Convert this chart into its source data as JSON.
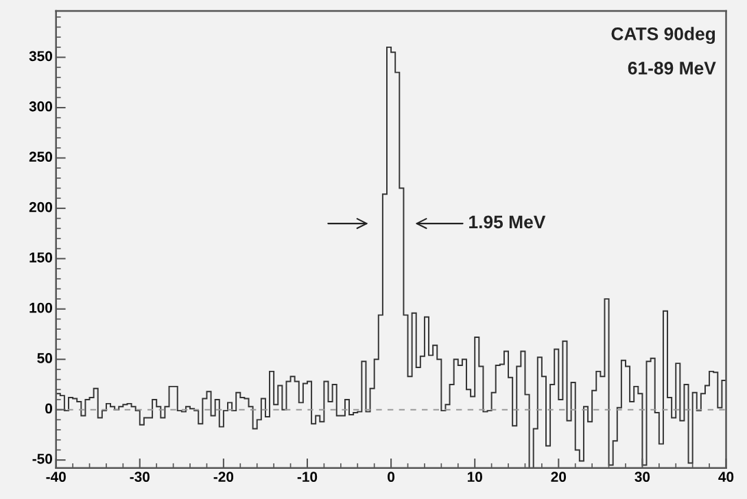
{
  "chart_data": {
    "type": "histogram",
    "bins": [
      -40,
      -39.5,
      -39,
      -38.5,
      -38,
      -37.5,
      -37,
      -36.5,
      -36,
      -35.5,
      -35,
      -34.5,
      -34,
      -33.5,
      -33,
      -32.5,
      -32,
      -31.5,
      -31,
      -30.5,
      -30,
      -29.5,
      -29,
      -28.5,
      -28,
      -27.5,
      -27,
      -26.5,
      -26,
      -25.5,
      -25,
      -24.5,
      -24,
      -23.5,
      -23,
      -22.5,
      -22,
      -21.5,
      -21,
      -20.5,
      -20,
      -19.5,
      -19,
      -18.5,
      -18,
      -17.5,
      -17,
      -16.5,
      -16,
      -15.5,
      -15,
      -14.5,
      -14,
      -13.5,
      -13,
      -12.5,
      -12,
      -11.5,
      -11,
      -10.5,
      -10,
      -9.5,
      -9,
      -8.5,
      -8,
      -7.5,
      -7,
      -6.5,
      -6,
      -5.5,
      -5,
      -4.5,
      -4,
      -3.5,
      -3,
      -2.5,
      -2,
      -1.5,
      -1,
      -0.5,
      0,
      0.5,
      1,
      1.5,
      2,
      2.5,
      3,
      3.5,
      4,
      4.5,
      5,
      5.5,
      6,
      6.5,
      7,
      7.5,
      8,
      8.5,
      9,
      9.5,
      10,
      10.5,
      11,
      11.5,
      12,
      12.5,
      13,
      13.5,
      14,
      14.5,
      15,
      15.5,
      16,
      16.5,
      17,
      17.5,
      18,
      18.5,
      19,
      19.5,
      20,
      20.5,
      21,
      21.5,
      22,
      22.5,
      23,
      23.5,
      24,
      24.5,
      25,
      25.5,
      26,
      26.5,
      27,
      27.5,
      28,
      28.5,
      29,
      29.5,
      30,
      30.5,
      31,
      31.5,
      32,
      32.5,
      33,
      33.5,
      34,
      34.5,
      35,
      35.5,
      36,
      36.5,
      37,
      37.5,
      38,
      38.5,
      39,
      39.5,
      40
    ],
    "values": [
      16,
      14,
      -1,
      12,
      11,
      8,
      -6,
      10,
      12,
      21,
      -8,
      -1,
      6,
      3,
      0,
      3,
      5,
      6,
      3,
      -1,
      -15,
      -8,
      -8,
      10,
      3,
      -8,
      3,
      23,
      23,
      -1,
      -2,
      3,
      1,
      -1,
      -14,
      11,
      18,
      -6,
      10,
      -17,
      -1,
      7,
      -1,
      17,
      12,
      11,
      3,
      -19,
      -10,
      11,
      -7,
      38,
      5,
      24,
      0,
      28,
      33,
      28,
      7,
      26,
      28,
      -14,
      -6,
      -12,
      28,
      8,
      25,
      -6,
      -6,
      10,
      -5,
      -3,
      -2,
      48,
      -2,
      21,
      50,
      94,
      214,
      360,
      355,
      335,
      220,
      94,
      33,
      96,
      42,
      53,
      92,
      54,
      64,
      50,
      -1,
      5,
      25,
      50,
      44,
      50,
      20,
      13,
      72,
      43,
      -2,
      -1,
      17,
      44,
      45,
      58,
      32,
      -16,
      43,
      58,
      15,
      -58,
      -19,
      52,
      33,
      -36,
      25,
      60,
      10,
      68,
      -11,
      27,
      -40,
      -51,
      3,
      -12,
      19,
      38,
      33,
      110,
      -55,
      -31,
      2,
      49,
      43,
      8,
      23,
      16,
      -55,
      48,
      51,
      -3,
      -34,
      98,
      12,
      -8,
      46,
      -11,
      25,
      -53,
      17,
      -1,
      16,
      24,
      38,
      37,
      2,
      29
    ],
    "color": "#333333",
    "xlim": [
      -40,
      40
    ],
    "ylim": [
      -58,
      396
    ],
    "xticks": [
      -40,
      -30,
      -20,
      -10,
      0,
      10,
      20,
      30,
      40,
      {
        "value": -38,
        "label": null
      },
      {
        "value": -36,
        "label": null
      },
      {
        "value": -34,
        "label": null
      },
      {
        "value": -32,
        "label": null
      },
      {
        "value": -28,
        "label": null
      },
      {
        "value": -26,
        "label": null
      },
      {
        "value": -24,
        "label": null
      },
      {
        "value": -22,
        "label": null
      },
      {
        "value": -18,
        "label": null
      },
      {
        "value": -16,
        "label": null
      },
      {
        "value": -14,
        "label": null
      },
      {
        "value": -12,
        "label": null
      },
      {
        "value": -8,
        "label": null
      },
      {
        "value": -6,
        "label": null
      },
      {
        "value": -4,
        "label": null
      },
      {
        "value": -2,
        "label": null
      },
      {
        "value": 2,
        "label": null
      },
      {
        "value": 4,
        "label": null
      },
      {
        "value": 6,
        "label": null
      },
      {
        "value": 8,
        "label": null
      },
      {
        "value": 12,
        "label": null
      },
      {
        "value": 14,
        "label": null
      },
      {
        "value": 16,
        "label": null
      },
      {
        "value": 18,
        "label": null
      },
      {
        "value": 22,
        "label": null
      },
      {
        "value": 24,
        "label": null
      },
      {
        "value": 26,
        "label": null
      },
      {
        "value": 28,
        "label": null
      },
      {
        "value": 32,
        "label": null
      },
      {
        "value": 34,
        "label": null
      },
      {
        "value": 36,
        "label": null
      },
      {
        "value": 38,
        "label": null
      }
    ],
    "yticks": [
      -50,
      0,
      50,
      100,
      150,
      200,
      250,
      300,
      350,
      {
        "value": -40,
        "label": null
      },
      {
        "value": -30,
        "label": null
      },
      {
        "value": -20,
        "label": null
      },
      {
        "value": -10,
        "label": null
      },
      {
        "value": 10,
        "label": null
      },
      {
        "value": 20,
        "label": null
      },
      {
        "value": 30,
        "label": null
      },
      {
        "value": 40,
        "label": null
      },
      {
        "value": 60,
        "label": null
      },
      {
        "value": 70,
        "label": null
      },
      {
        "value": 80,
        "label": null
      },
      {
        "value": 90,
        "label": null
      },
      {
        "value": 110,
        "label": null
      },
      {
        "value": 120,
        "label": null
      },
      {
        "value": 130,
        "label": null
      },
      {
        "value": 140,
        "label": null
      },
      {
        "value": 160,
        "label": null
      },
      {
        "value": 170,
        "label": null
      },
      {
        "value": 180,
        "label": null
      },
      {
        "value": 190,
        "label": null
      },
      {
        "value": 210,
        "label": null
      },
      {
        "value": 220,
        "label": null
      },
      {
        "value": 230,
        "label": null
      },
      {
        "value": 240,
        "label": null
      },
      {
        "value": 260,
        "label": null
      },
      {
        "value": 270,
        "label": null
      },
      {
        "value": 280,
        "label": null
      },
      {
        "value": 290,
        "label": null
      },
      {
        "value": 310,
        "label": null
      },
      {
        "value": 320,
        "label": null
      },
      {
        "value": 330,
        "label": null
      },
      {
        "value": 340,
        "label": null
      },
      {
        "value": 360,
        "label": null
      },
      {
        "value": 370,
        "label": null
      },
      {
        "value": 380,
        "label": null
      },
      {
        "value": 390,
        "label": null
      }
    ],
    "ref_lines": [
      {
        "axis": "y",
        "value": 0,
        "label": null,
        "color": "#999999",
        "line_style": "dashed"
      }
    ],
    "annotations": [
      "CATS 90deg",
      "61-89 MeV",
      "1.95 MeV"
    ],
    "grid": false,
    "legend": false
  }
}
